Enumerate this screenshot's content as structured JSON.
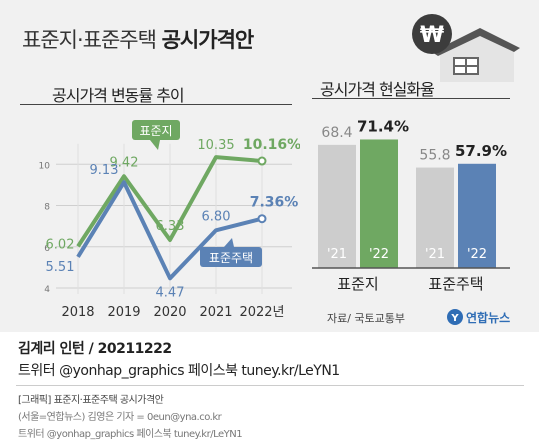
{
  "header": {
    "title_prefix": "표준지·표준주택",
    "title_bold": "공시가격안",
    "icon": "won-house-icon"
  },
  "chart_data": [
    {
      "type": "line",
      "title": "공시가격 변동률 추이",
      "categories": [
        "2018",
        "2019",
        "2020",
        "2021",
        "2022년"
      ],
      "ylim": [
        4,
        11
      ],
      "yticks": [
        "4",
        "6",
        "8",
        "10"
      ],
      "grid": true,
      "series": [
        {
          "name": "표준지",
          "color": "#6fa862",
          "values": [
            6.02,
            9.42,
            6.33,
            10.35,
            10.16
          ],
          "labels": [
            "6.02",
            "9.42",
            "6.33",
            "10.35",
            "10.16%"
          ]
        },
        {
          "name": "표준주택",
          "color": "#5b82b5",
          "values": [
            5.51,
            9.13,
            4.47,
            6.8,
            7.36
          ],
          "labels": [
            "5.51",
            "9.13",
            "4.47",
            "6.80",
            "7.36%"
          ]
        }
      ]
    },
    {
      "type": "bar",
      "title": "공시가격 현실화율",
      "categories": [
        "표준지",
        "표준주택"
      ],
      "series": [
        {
          "name": "'21",
          "values": [
            68.4,
            55.8
          ],
          "labels": [
            "68.4",
            "55.8"
          ]
        },
        {
          "name": "'22",
          "values": [
            71.4,
            57.9
          ],
          "labels": [
            "71.4%",
            "57.9%"
          ]
        }
      ],
      "source": "자료/ 국토교통부"
    }
  ],
  "colors": {
    "green": "#6fa862",
    "blue": "#5b82b5",
    "gray_bar": "#cdcdcd",
    "card": "#f1f1f1"
  },
  "logo": {
    "text": "연합뉴스"
  },
  "footer": {
    "line1": "김계리 인턴 / 20211222",
    "line2": "트위터 @yonhap_graphics  페이스북 tuney.kr/LeYN1",
    "line3": "[그래픽] 표준지·표준주택 공시가격안",
    "line4": "(서울=연합뉴스) 김영은 기자 = 0eun@yna.co.kr",
    "line5": "트위터 @yonhap_graphics  페이스북 tuney.kr/LeYN1"
  }
}
